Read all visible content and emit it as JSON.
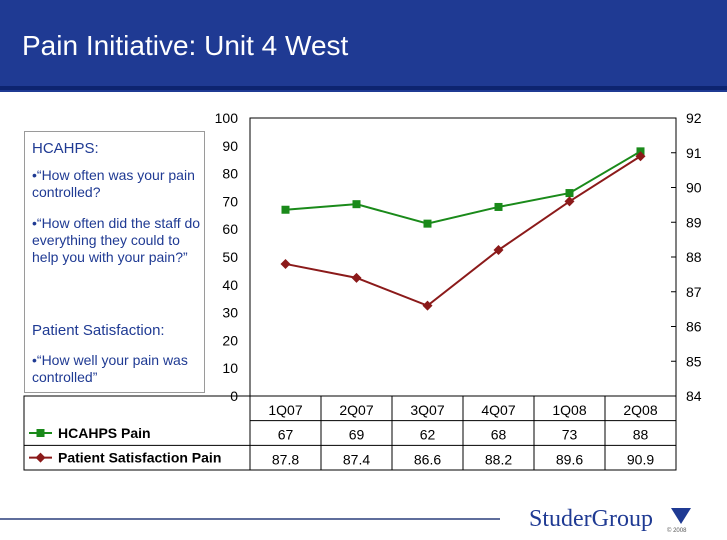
{
  "slide": {
    "title": "Pain Initiative: Unit 4 West"
  },
  "textbox": {
    "heading1": "HCAHPS:",
    "bullet1": "•“How often was your pain controlled?",
    "bullet2": "•“How often did the staff do everything they could to help you with your pain?”",
    "heading2": "Patient Satisfaction:",
    "bullet3": "•“How well your pain was controlled”"
  },
  "logo": {
    "text": "StuderGroup",
    "sub": "© 2008"
  },
  "chart_data": {
    "type": "line",
    "categories": [
      "1Q07",
      "2Q07",
      "3Q07",
      "4Q07",
      "1Q08",
      "2Q08"
    ],
    "series": [
      {
        "name": "HCAHPS Pain",
        "axis": "left",
        "values": [
          67,
          69,
          62,
          68,
          73,
          88
        ],
        "color": "#1a8a1a",
        "marker": "square"
      },
      {
        "name": "Patient Satisfaction Pain",
        "axis": "right",
        "values": [
          87.8,
          87.4,
          86.6,
          88.2,
          89.6,
          90.9
        ],
        "color": "#8b1a1a",
        "marker": "diamond"
      }
    ],
    "left_axis": {
      "min": 0,
      "max": 100,
      "ticks": [
        0,
        10,
        20,
        30,
        40,
        50,
        60,
        70,
        80,
        90,
        100
      ]
    },
    "right_axis": {
      "min": 84,
      "max": 92,
      "ticks": [
        84,
        85,
        86,
        87,
        88,
        89,
        90,
        91,
        92
      ]
    },
    "table_values": [
      [
        "67",
        "69",
        "62",
        "68",
        "73",
        "88"
      ],
      [
        "87.8",
        "87.4",
        "86.6",
        "88.2",
        "89.6",
        "90.9"
      ]
    ],
    "colors": {
      "axis": "#000000",
      "grid": "#000000"
    }
  }
}
